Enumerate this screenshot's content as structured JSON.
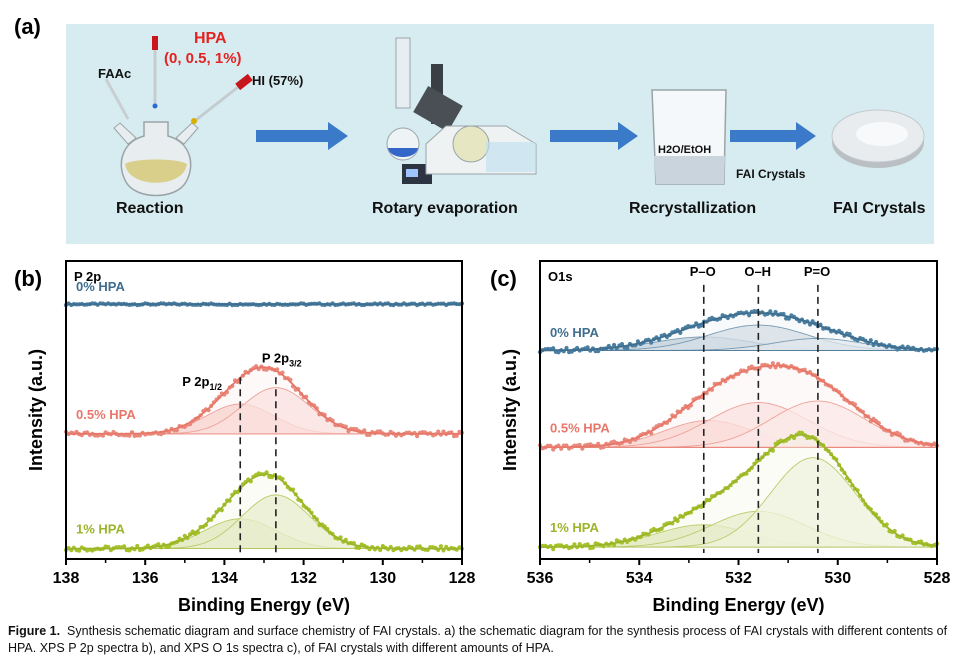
{
  "panel_a": {
    "label": "(a)",
    "hpa_title": "HPA",
    "hpa_amounts": "(0, 0.5, 1%)",
    "faac": "FAAc",
    "hi": "HI (57%)",
    "solvent": "H2O/EtOH",
    "crystals_arrow_label": "FAI Crystals",
    "steps": [
      "Reaction",
      "Rotary evaporation",
      "Recrystallization",
      "FAI Crystals"
    ]
  },
  "colors": {
    "c0": "#3f6e8f",
    "c05": "#e8776a",
    "c1": "#9bb52a",
    "dots0": "#4a7fa2",
    "dots05": "#e88a7b",
    "dots1": "#a6c22b"
  },
  "chart_data": [
    {
      "panel_label": "(b)",
      "type": "line",
      "title": "P 2p",
      "xlabel": "Binding Energy (eV)",
      "ylabel": "Intensity (a.u.)",
      "xlim": [
        138,
        128
      ],
      "ylim": [
        0,
        10
      ],
      "xticks": [
        138,
        136,
        134,
        132,
        130,
        128
      ],
      "series": [
        {
          "name": "0% HPA",
          "color": "#3f6e8f",
          "baseline": 8.55,
          "peaks": []
        },
        {
          "name": "0.5% HPA",
          "color": "#e8776a",
          "baseline": 4.2,
          "peaks": [
            {
              "center": 133.6,
              "amp": 1.0,
              "width": 0.85
            },
            {
              "center": 132.7,
              "amp": 1.55,
              "width": 0.85
            }
          ]
        },
        {
          "name": "1% HPA",
          "color": "#9bb52a",
          "baseline": 0.35,
          "peaks": [
            {
              "center": 133.6,
              "amp": 1.0,
              "width": 0.9
            },
            {
              "center": 132.7,
              "amp": 1.8,
              "width": 0.85
            }
          ]
        }
      ],
      "reference_lines": [
        133.6,
        132.7
      ],
      "annotations": [
        {
          "text": "P 2p",
          "sub": "1/2",
          "x": 133.6
        },
        {
          "text": "P 2p",
          "sub": "3/2",
          "x": 132.7
        }
      ]
    },
    {
      "panel_label": "(c)",
      "type": "line",
      "title": "O1s",
      "xlabel": "Binding Energy (eV)",
      "ylabel": "Intensity (a.u.)",
      "xlim": [
        536,
        528
      ],
      "ylim": [
        0,
        10
      ],
      "xticks": [
        536,
        534,
        532,
        530,
        528
      ],
      "series": [
        {
          "name": "0% HPA",
          "color": "#3f6e8f",
          "baseline": 7.0,
          "peaks": [
            {
              "center": 532.7,
              "amp": 0.45,
              "width": 1.0
            },
            {
              "center": 531.6,
              "amp": 0.85,
              "width": 1.0
            },
            {
              "center": 530.4,
              "amp": 0.4,
              "width": 0.9
            }
          ]
        },
        {
          "name": "0.5% HPA",
          "color": "#e8776a",
          "baseline": 3.75,
          "peaks": [
            {
              "center": 532.6,
              "amp": 0.9,
              "width": 0.9
            },
            {
              "center": 531.6,
              "amp": 1.5,
              "width": 1.0
            },
            {
              "center": 530.4,
              "amp": 1.55,
              "width": 0.95
            }
          ]
        },
        {
          "name": "1% HPA",
          "color": "#9bb52a",
          "baseline": 0.4,
          "peaks": [
            {
              "center": 532.7,
              "amp": 0.75,
              "width": 0.95
            },
            {
              "center": 531.6,
              "amp": 1.2,
              "width": 0.95
            },
            {
              "center": 530.5,
              "amp": 3.0,
              "width": 0.85
            }
          ]
        }
      ],
      "reference_lines": [
        532.7,
        531.6,
        530.4
      ],
      "annotations": [
        {
          "text": "P–O",
          "x": 532.7
        },
        {
          "text": "O–H",
          "x": 531.6
        },
        {
          "text": "P=O",
          "x": 530.4
        }
      ]
    }
  ],
  "caption": {
    "label": "Figure 1.",
    "text": "Synthesis schematic diagram and surface chemistry of FAI crystals. a) the schematic diagram for the synthesis process of FAI crystals with different contents of HPA. XPS P 2p spectra b), and XPS O 1s spectra c), of FAI crystals with different amounts of HPA."
  }
}
